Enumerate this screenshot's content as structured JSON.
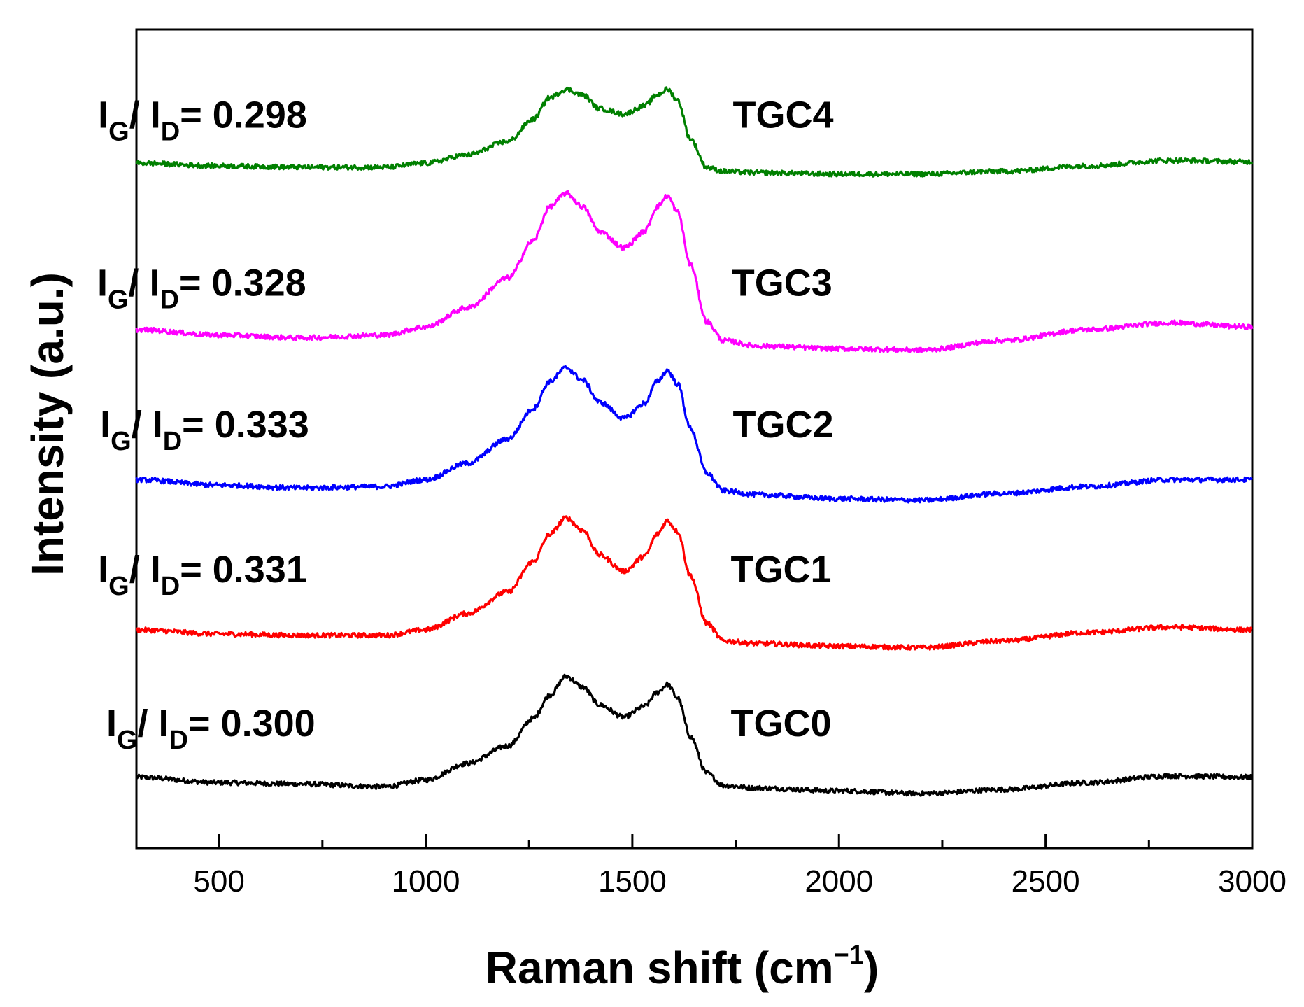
{
  "chart_data": {
    "type": "line",
    "title": "",
    "xlabel": "Raman shift (cm",
    "xlabel_sup": "−1",
    "xlabel_close": ")",
    "ylabel": "Intensity (a.u.)",
    "xlim": [
      300,
      3000
    ],
    "ylim": [
      0,
      6
    ],
    "x_ticks": [
      500,
      1000,
      1500,
      2000,
      2500,
      3000
    ],
    "x_tick_labels": [
      "500",
      "1000",
      "1500",
      "2000",
      "2500",
      "3000"
    ],
    "y_ticks_shown": false,
    "legend": "none (labels placed beside each curve)",
    "ratio_prefix": "I",
    "ratio_sub_g": "G",
    "ratio_sep": "/ I",
    "ratio_sub_d": "D",
    "ratio_eq": "= ",
    "series": [
      {
        "name": "TGC0",
        "color": "#000000",
        "ratio": "0.300",
        "label_at": [
          1860,
          0.82
        ],
        "ratio_at": [
          480,
          0.82
        ],
        "x": [
          300,
          500,
          700,
          900,
          1000,
          1100,
          1200,
          1260,
          1300,
          1340,
          1380,
          1420,
          1480,
          1530,
          1560,
          1585,
          1610,
          1640,
          1680,
          1720,
          1800,
          2000,
          2200,
          2400,
          2600,
          2800,
          3000
        ],
        "y": [
          0.52,
          0.48,
          0.47,
          0.45,
          0.5,
          0.62,
          0.75,
          0.95,
          1.12,
          1.26,
          1.18,
          1.05,
          0.96,
          1.04,
          1.14,
          1.2,
          1.1,
          0.82,
          0.55,
          0.46,
          0.44,
          0.42,
          0.4,
          0.43,
          0.48,
          0.53,
          0.52
        ]
      },
      {
        "name": "TGC1",
        "color": "#ff0000",
        "ratio": "0.331",
        "label_at": [
          1860,
          1.95
        ],
        "ratio_at": [
          460,
          1.95
        ],
        "x": [
          300,
          500,
          700,
          900,
          1000,
          1100,
          1200,
          1260,
          1300,
          1340,
          1380,
          1420,
          1480,
          1530,
          1560,
          1585,
          1610,
          1640,
          1680,
          1720,
          1800,
          2000,
          2200,
          2400,
          2600,
          2800,
          3000
        ],
        "y": [
          1.6,
          1.57,
          1.56,
          1.56,
          1.6,
          1.72,
          1.88,
          2.1,
          2.3,
          2.42,
          2.33,
          2.15,
          2.03,
          2.14,
          2.3,
          2.4,
          2.32,
          2.0,
          1.65,
          1.52,
          1.5,
          1.48,
          1.47,
          1.52,
          1.58,
          1.62,
          1.6
        ]
      },
      {
        "name": "TGC2",
        "color": "#0000ff",
        "ratio": "0.333",
        "label_at": [
          1865,
          3.01
        ],
        "ratio_at": [
          465,
          3.01
        ],
        "x": [
          300,
          500,
          700,
          900,
          1000,
          1100,
          1200,
          1260,
          1300,
          1340,
          1380,
          1420,
          1480,
          1530,
          1560,
          1585,
          1610,
          1640,
          1680,
          1720,
          1800,
          2000,
          2200,
          2400,
          2600,
          2800,
          3000
        ],
        "y": [
          2.7,
          2.66,
          2.64,
          2.65,
          2.7,
          2.82,
          3.0,
          3.22,
          3.42,
          3.52,
          3.43,
          3.27,
          3.15,
          3.26,
          3.42,
          3.5,
          3.4,
          3.08,
          2.75,
          2.62,
          2.59,
          2.56,
          2.55,
          2.6,
          2.65,
          2.7,
          2.7
        ]
      },
      {
        "name": "TGC3",
        "color": "#ff00ff",
        "ratio": "0.328",
        "label_at": [
          1862,
          4.05
        ],
        "ratio_at": [
          458,
          4.05
        ],
        "x": [
          300,
          500,
          700,
          900,
          1000,
          1100,
          1200,
          1260,
          1300,
          1340,
          1380,
          1420,
          1480,
          1530,
          1560,
          1585,
          1610,
          1640,
          1680,
          1720,
          1800,
          2000,
          2200,
          2400,
          2600,
          2800,
          3000
        ],
        "y": [
          3.8,
          3.76,
          3.74,
          3.76,
          3.82,
          3.96,
          4.18,
          4.45,
          4.7,
          4.8,
          4.7,
          4.52,
          4.4,
          4.52,
          4.7,
          4.78,
          4.66,
          4.28,
          3.86,
          3.72,
          3.68,
          3.66,
          3.65,
          3.72,
          3.8,
          3.85,
          3.82
        ]
      },
      {
        "name": "TGC4",
        "color": "#008000",
        "ratio": "0.298",
        "label_at": [
          1865,
          5.28
        ],
        "ratio_at": [
          460,
          5.28
        ],
        "x": [
          300,
          500,
          700,
          900,
          1000,
          1100,
          1200,
          1260,
          1300,
          1340,
          1380,
          1420,
          1480,
          1530,
          1560,
          1585,
          1610,
          1640,
          1680,
          1720,
          1800,
          2000,
          2200,
          2400,
          2600,
          2800,
          3000
        ],
        "y": [
          5.02,
          5.0,
          4.99,
          4.99,
          5.02,
          5.08,
          5.18,
          5.34,
          5.5,
          5.56,
          5.52,
          5.42,
          5.38,
          5.44,
          5.52,
          5.56,
          5.48,
          5.2,
          4.99,
          4.96,
          4.95,
          4.94,
          4.94,
          4.96,
          5.0,
          5.04,
          5.03
        ]
      }
    ]
  }
}
